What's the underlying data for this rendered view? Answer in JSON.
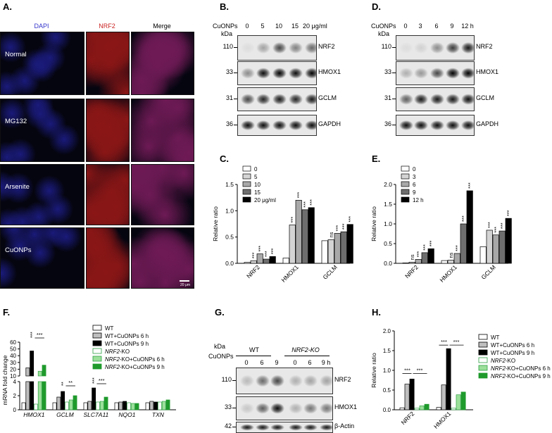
{
  "panels": {
    "A": "A.",
    "B": "B.",
    "C": "C.",
    "D": "D.",
    "E": "E.",
    "F": "F.",
    "G": "G.",
    "H": "H."
  },
  "panel_a": {
    "columns": [
      "DAPI",
      "NRF2",
      "Merge"
    ],
    "rows": [
      "Normal",
      "MG132",
      "Arsenite",
      "CuONPs"
    ],
    "scale_bar": "20 μm",
    "colors": {
      "dapi": "#1a1a7a",
      "nrf2": "#8a1616",
      "merge": "#6e1a55",
      "dapi_label": "#3333cc",
      "nrf2_label": "#cc2222"
    }
  },
  "panel_b": {
    "treatment": "CuONPs",
    "kda": "kDa",
    "doses": [
      "0",
      "5",
      "10",
      "15",
      "20 μg/ml"
    ],
    "markers": [
      "110",
      "33",
      "31",
      "36"
    ],
    "proteins": [
      "NRF2",
      "HMOX1",
      "GCLM",
      "GAPDH"
    ]
  },
  "panel_d": {
    "treatment": "CuONPs",
    "kda": "kDa",
    "times": [
      "0",
      "3",
      "6",
      "9",
      "12 h"
    ],
    "markers": [
      "110",
      "33",
      "31",
      "36"
    ],
    "proteins": [
      "NRF2",
      "HMOX1",
      "GCLM",
      "GAPDH"
    ]
  },
  "panel_g": {
    "treatment": "CuONPs",
    "kda": "kDa",
    "groups": [
      "WT",
      "NRF2-KO"
    ],
    "times": [
      "0",
      "6",
      "9",
      "0",
      "6",
      "9 h"
    ],
    "markers": [
      "110",
      "33",
      "42"
    ],
    "proteins": [
      "NRF2",
      "HMOX1",
      "β-Actin"
    ]
  },
  "chart_data": [
    {
      "panel": "C",
      "type": "bar",
      "ylabel": "Relative ratio",
      "ylim": [
        0,
        1.5
      ],
      "yticks": [
        "0.0",
        "0.5",
        "1.0",
        "1.5"
      ],
      "categories": [
        "NRF2",
        "HMOX1",
        "GCLM"
      ],
      "series": [
        {
          "name": "0",
          "color": "#ffffff",
          "values": [
            0.02,
            0.1,
            0.43
          ]
        },
        {
          "name": "5",
          "color": "#d4d4d4",
          "values": [
            0.05,
            0.73,
            0.45
          ]
        },
        {
          "name": "10",
          "color": "#a8a8a8",
          "values": [
            0.18,
            1.2,
            0.57
          ]
        },
        {
          "name": "15",
          "color": "#6e6e6e",
          "values": [
            0.08,
            1.02,
            0.6
          ]
        },
        {
          "name": "20 μg/ml",
          "color": "#000000",
          "values": [
            0.13,
            1.06,
            0.74
          ]
        }
      ],
      "annotations": [
        [
          "",
          "***",
          "***",
          "***",
          "***"
        ],
        [
          "",
          "***",
          "***",
          "***",
          "***"
        ],
        [
          "",
          "ns",
          "***",
          "***",
          "***"
        ]
      ]
    },
    {
      "panel": "E",
      "type": "bar",
      "ylabel": "Relative ratio",
      "ylim": [
        0,
        2.0
      ],
      "yticks": [
        "0.0",
        "0.5",
        "1.0",
        "1.5",
        "2.0"
      ],
      "categories": [
        "NRF2",
        "HMOX1",
        "GCLM"
      ],
      "series": [
        {
          "name": "0",
          "color": "#ffffff",
          "values": [
            0.01,
            0.07,
            0.42
          ]
        },
        {
          "name": "3",
          "color": "#d4d4d4",
          "values": [
            0.03,
            0.08,
            0.84
          ]
        },
        {
          "name": "6",
          "color": "#a8a8a8",
          "values": [
            0.1,
            0.25,
            0.72
          ]
        },
        {
          "name": "9",
          "color": "#6e6e6e",
          "values": [
            0.27,
            1.0,
            0.82
          ]
        },
        {
          "name": "12 h",
          "color": "#000000",
          "values": [
            0.37,
            1.84,
            1.14
          ]
        }
      ],
      "annotations": [
        [
          "",
          "ns",
          "***",
          "***",
          "***"
        ],
        [
          "",
          "ns",
          "***",
          "***",
          "***"
        ],
        [
          "",
          "***",
          "***",
          "***",
          "***"
        ]
      ]
    },
    {
      "panel": "F",
      "type": "bar",
      "ylabel": "mRNA fold change",
      "ylim": [
        0,
        60
      ],
      "yticks": [
        "0",
        "2",
        "4",
        "10",
        "20",
        "30",
        "40",
        "50",
        "60"
      ],
      "categories": [
        "HMOX1",
        "GCLM",
        "SLC7A11",
        "NQO1",
        "TXN"
      ],
      "series": [
        {
          "name": "WT",
          "color": "#ffffff",
          "edge": "#000000",
          "values": [
            1.0,
            1.0,
            1.0,
            1.0,
            1.0
          ]
        },
        {
          "name": "WT+CuONPs 6 h",
          "color": "#bfbfbf",
          "edge": "#000000",
          "values": [
            22,
            1.8,
            1.2,
            1.1,
            1.2
          ]
        },
        {
          "name": "WT+CuONPs 9 h",
          "color": "#000000",
          "edge": "#000000",
          "values": [
            47,
            2.6,
            3.1,
            1.2,
            1.1
          ]
        },
        {
          "name": "NRF2-KO",
          "color": "#ffffff",
          "edge": "#2ea043",
          "values": [
            0.8,
            1.1,
            1.1,
            1.0,
            1.1
          ]
        },
        {
          "name": "NRF2-KO+CuONPs 6 h",
          "color": "#9be09b",
          "edge": "#2ea043",
          "values": [
            17,
            1.4,
            1.2,
            0.9,
            1.2
          ]
        },
        {
          "name": "NRF2-KO+CuONPs 9 h",
          "color": "#1f9a2c",
          "edge": "#1f9a2c",
          "values": [
            26,
            2.0,
            1.8,
            0.9,
            1.4
          ]
        }
      ],
      "annotations": [
        [
          "***",
          "***"
        ],
        [
          "**",
          "**"
        ],
        [
          "***",
          "***"
        ]
      ]
    },
    {
      "panel": "H",
      "type": "bar",
      "ylabel": "Relative ratio",
      "ylim": [
        0,
        2.0
      ],
      "yticks": [
        "0.0",
        "0.5",
        "1.0",
        "1.5",
        "2.0"
      ],
      "categories": [
        "NRF2",
        "HMOX1"
      ],
      "series": [
        {
          "name": "WT",
          "color": "#ffffff",
          "edge": "#000000",
          "values": [
            0.05,
            0.06
          ]
        },
        {
          "name": "WT+CuONPs 6 h",
          "color": "#bfbfbf",
          "edge": "#000000",
          "values": [
            0.65,
            0.63
          ]
        },
        {
          "name": "WT+CuONPs 9 h",
          "color": "#000000",
          "edge": "#000000",
          "values": [
            0.78,
            1.55
          ]
        },
        {
          "name": "NRF2-KO",
          "color": "#ffffff",
          "edge": "#2ea043",
          "values": [
            0.04,
            0.04
          ]
        },
        {
          "name": "NRF2-KO+CuONPs 6 h",
          "color": "#9be09b",
          "edge": "#2ea043",
          "values": [
            0.1,
            0.38
          ]
        },
        {
          "name": "NRF2-KO+CuONPs 9 h",
          "color": "#1f9a2c",
          "edge": "#1f9a2c",
          "values": [
            0.14,
            0.45
          ]
        }
      ],
      "annotations": [
        "***",
        "***",
        "***",
        "***"
      ]
    }
  ]
}
